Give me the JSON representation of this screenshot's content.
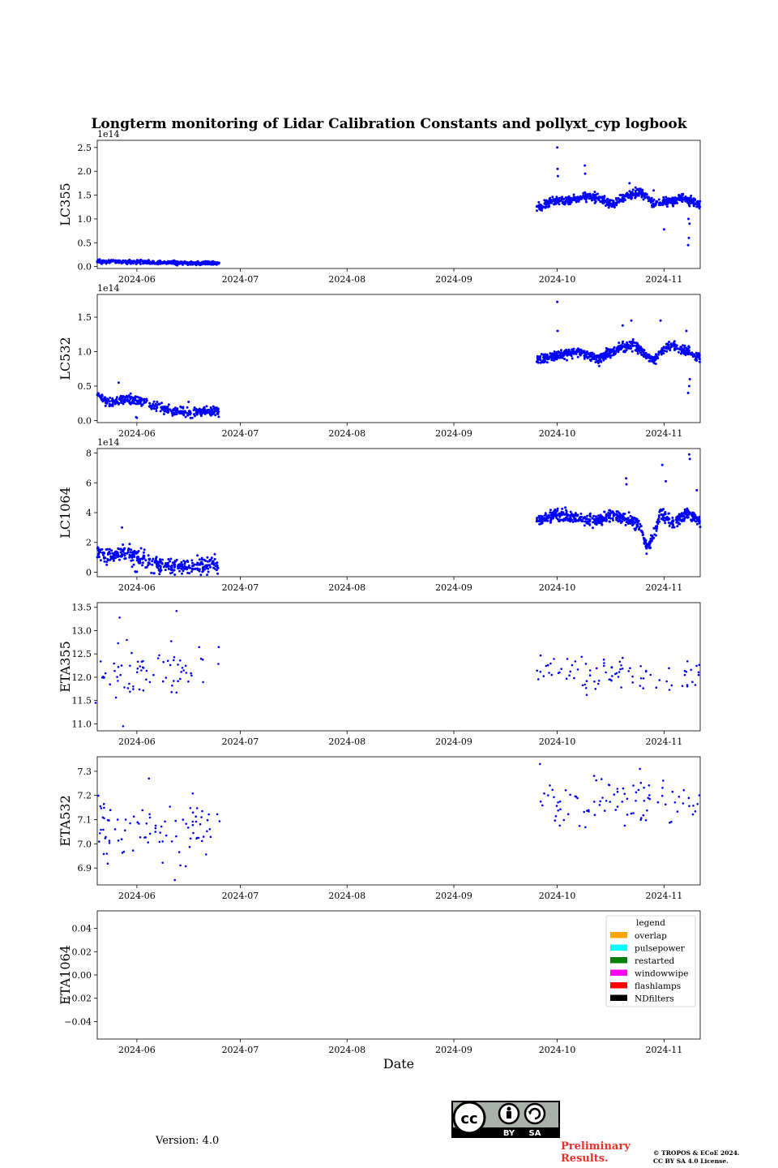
{
  "chart_data": {
    "type": "scatter",
    "title": "Longterm monitoring of Lidar Calibration Constants and pollyxt_cyp logbook",
    "xlabel": "Date",
    "x_ticks": [
      "2024-06",
      "2024-07",
      "2024-08",
      "2024-09",
      "2024-10",
      "2024-11"
    ],
    "x_range_days": [
      -11.5,
      163.5
    ],
    "x_tick_days": [
      0,
      30,
      61,
      92,
      122,
      153
    ],
    "point_color": "#0000ff",
    "panels": [
      {
        "name": "LC355",
        "ylabel": "LC355",
        "exponent": "1e14",
        "ylim": [
          -0.04,
          2.65
        ],
        "yticks": [
          "0.0",
          "0.5",
          "1.0",
          "1.5",
          "2.0",
          "2.5"
        ],
        "ytick_values": [
          0,
          0.5,
          1.0,
          1.5,
          2.0,
          2.5
        ],
        "series": [
          {
            "x_range": [
              -11.5,
              24
            ],
            "base": [
              [
                -11.5,
                0.11
              ],
              [
                -5,
                0.1
              ],
              [
                5,
                0.09
              ],
              [
                15,
                0.07
              ],
              [
                24,
                0.07
              ]
            ],
            "spread": 0.03,
            "count": 420,
            "outliers": []
          },
          {
            "x_range": [
              116,
              163.5
            ],
            "base": [
              [
                116,
                1.25
              ],
              [
                120,
                1.35
              ],
              [
                126,
                1.4
              ],
              [
                130,
                1.47
              ],
              [
                134,
                1.45
              ],
              [
                138,
                1.3
              ],
              [
                142,
                1.48
              ],
              [
                146,
                1.55
              ],
              [
                150,
                1.35
              ],
              [
                154,
                1.35
              ],
              [
                158,
                1.45
              ],
              [
                163.5,
                1.3
              ]
            ],
            "spread": 0.08,
            "count": 650,
            "outliers": [
              [
                122,
                2.5
              ],
              [
                122.1,
                2.05
              ],
              [
                122.2,
                1.9
              ],
              [
                130,
                2.12
              ],
              [
                130.1,
                1.95
              ],
              [
                143,
                1.75
              ],
              [
                150,
                1.6
              ],
              [
                153,
                0.78
              ],
              [
                160,
                0.45
              ],
              [
                160.2,
                0.6
              ],
              [
                160.4,
                0.9
              ],
              [
                160.1,
                1.0
              ]
            ]
          }
        ]
      },
      {
        "name": "LC532",
        "ylabel": "LC532",
        "exponent": "1e14",
        "ylim": [
          -0.03,
          1.83
        ],
        "yticks": [
          "0.0",
          "0.5",
          "1.0",
          "1.5"
        ],
        "ytick_values": [
          0,
          0.5,
          1.0,
          1.5
        ],
        "series": [
          {
            "x_range": [
              -11.5,
              24
            ],
            "base": [
              [
                -11.5,
                0.38
              ],
              [
                -8,
                0.25
              ],
              [
                -4,
                0.3
              ],
              [
                0,
                0.3
              ],
              [
                5,
                0.22
              ],
              [
                10,
                0.14
              ],
              [
                16,
                0.12
              ],
              [
                24,
                0.15
              ]
            ],
            "spread": 0.06,
            "count": 380,
            "outliers": [
              [
                -5.3,
                0.55
              ],
              [
                -0.2,
                0.05
              ],
              [
                0,
                0.04
              ],
              [
                15,
                0.27
              ]
            ]
          },
          {
            "x_range": [
              116,
              163.5
            ],
            "base": [
              [
                116,
                0.88
              ],
              [
                122,
                0.95
              ],
              [
                128,
                1.0
              ],
              [
                134,
                0.9
              ],
              [
                140,
                1.05
              ],
              [
                144,
                1.1
              ],
              [
                150,
                0.87
              ],
              [
                154,
                1.1
              ],
              [
                160,
                1.0
              ],
              [
                163.5,
                0.9
              ]
            ],
            "spread": 0.06,
            "count": 620,
            "outliers": [
              [
                122,
                1.72
              ],
              [
                122.1,
                1.3
              ],
              [
                141,
                1.38
              ],
              [
                143.5,
                1.45
              ],
              [
                152,
                1.45
              ],
              [
                159.5,
                1.3
              ],
              [
                160,
                0.4
              ],
              [
                160.3,
                0.5
              ],
              [
                160.5,
                0.6
              ]
            ]
          }
        ]
      },
      {
        "name": "LC1064",
        "ylabel": "LC1064",
        "exponent": "1e14",
        "ylim": [
          -0.3,
          8.3
        ],
        "yticks": [
          "0",
          "2",
          "4",
          "6",
          "8"
        ],
        "ytick_values": [
          0,
          2,
          4,
          6,
          8
        ],
        "series": [
          {
            "x_range": [
              -11.5,
              24
            ],
            "base": [
              [
                -11.5,
                1.5
              ],
              [
                -8,
                1.0
              ],
              [
                -5,
                1.3
              ],
              [
                -2,
                1.3
              ],
              [
                1,
                0.9
              ],
              [
                5,
                0.6
              ],
              [
                10,
                0.35
              ],
              [
                17,
                0.35
              ],
              [
                24,
                0.5
              ]
            ],
            "spread": 0.45,
            "count": 360,
            "outliers": [
              [
                -4.3,
                3.0
              ],
              [
                -0.5,
                0.05
              ],
              [
                -0.3,
                0.02
              ],
              [
                0,
                0.03
              ]
            ]
          },
          {
            "x_range": [
              116,
              163.5
            ],
            "base": [
              [
                116,
                3.5
              ],
              [
                122,
                3.9
              ],
              [
                128,
                3.6
              ],
              [
                134,
                3.5
              ],
              [
                138,
                3.8
              ],
              [
                142,
                3.6
              ],
              [
                146,
                3.2
              ],
              [
                148,
                1.6
              ],
              [
                150,
                2.5
              ],
              [
                152,
                4.0
              ],
              [
                156,
                3.3
              ],
              [
                160,
                4.0
              ],
              [
                163.5,
                3.4
              ]
            ],
            "spread": 0.35,
            "count": 620,
            "outliers": [
              [
                142,
                6.3
              ],
              [
                142.1,
                5.9
              ],
              [
                152.5,
                7.2
              ],
              [
                153.5,
                6.1
              ],
              [
                160.3,
                7.9
              ],
              [
                160.5,
                7.6
              ],
              [
                162.5,
                5.5
              ]
            ]
          }
        ]
      },
      {
        "name": "ETA355",
        "ylabel": "ETA355",
        "exponent": "",
        "ylim": [
          10.85,
          13.6
        ],
        "yticks": [
          "11.0",
          "11.5",
          "12.0",
          "12.5",
          "13.0",
          "13.5"
        ],
        "ytick_values": [
          11.0,
          11.5,
          12.0,
          12.5,
          13.0,
          13.5
        ],
        "series": [
          {
            "x_range": [
              -11.5,
              24
            ],
            "base": [
              [
                -11.5,
                12.0
              ],
              [
                24,
                12.3
              ]
            ],
            "spread": 0.45,
            "count": 72,
            "outliers": [
              [
                -5,
                13.28
              ],
              [
                -4,
                10.95
              ],
              [
                11.5,
                13.42
              ],
              [
                -12,
                11.45
              ]
            ]
          },
          {
            "x_range": [
              116,
              163.5
            ],
            "base": [
              [
                116,
                12.2
              ],
              [
                140,
                12.05
              ],
              [
                163.5,
                12.0
              ]
            ],
            "spread": 0.3,
            "count": 88,
            "outliers": []
          }
        ]
      },
      {
        "name": "ETA532",
        "ylabel": "ETA532",
        "exponent": "",
        "ylim": [
          6.83,
          7.36
        ],
        "yticks": [
          "6.9",
          "7.0",
          "7.1",
          "7.2",
          "7.3"
        ],
        "ytick_values": [
          6.9,
          7.0,
          7.1,
          7.2,
          7.3
        ],
        "series": [
          {
            "x_range": [
              -11.5,
              24
            ],
            "base": [
              [
                -11.5,
                7.06
              ],
              [
                24,
                7.05
              ]
            ],
            "spread": 0.12,
            "count": 90,
            "outliers": [
              [
                11,
                6.85
              ],
              [
                3.5,
                7.27
              ]
            ]
          },
          {
            "x_range": [
              116,
              163.5
            ],
            "base": [
              [
                116,
                7.18
              ],
              [
                163.5,
                7.16
              ]
            ],
            "spread": 0.09,
            "count": 90,
            "outliers": [
              [
                117,
                7.33
              ],
              [
                146,
                7.31
              ]
            ]
          }
        ]
      },
      {
        "name": "ETA1064",
        "ylabel": "ETA1064",
        "exponent": "",
        "ylim": [
          -0.055,
          0.055
        ],
        "yticks": [
          "−0.04",
          "−0.02",
          "0.00",
          "0.02",
          "0.04"
        ],
        "ytick_values": [
          -0.04,
          -0.02,
          0.0,
          0.02,
          0.04
        ],
        "series": []
      }
    ],
    "legend": {
      "title": "legend",
      "location": "upper-right",
      "entries": [
        {
          "label": "overlap",
          "color": "#ffa500"
        },
        {
          "label": "pulsepower",
          "color": "#00ffff"
        },
        {
          "label": "restarted",
          "color": "#008000"
        },
        {
          "label": "windowwipe",
          "color": "#ff00ff"
        },
        {
          "label": "flashlamps",
          "color": "#ff0000"
        },
        {
          "label": "NDfilters",
          "color": "#000000"
        }
      ]
    }
  },
  "footer": {
    "version": "Version: 4.0",
    "cc_by": "BY",
    "cc_sa": "SA",
    "preliminary_line1": "Preliminary",
    "preliminary_line2": "Results.",
    "copyright_line1": "© TROPOS & ECoE 2024.",
    "copyright_line2": "CC BY SA 4.0 License."
  }
}
